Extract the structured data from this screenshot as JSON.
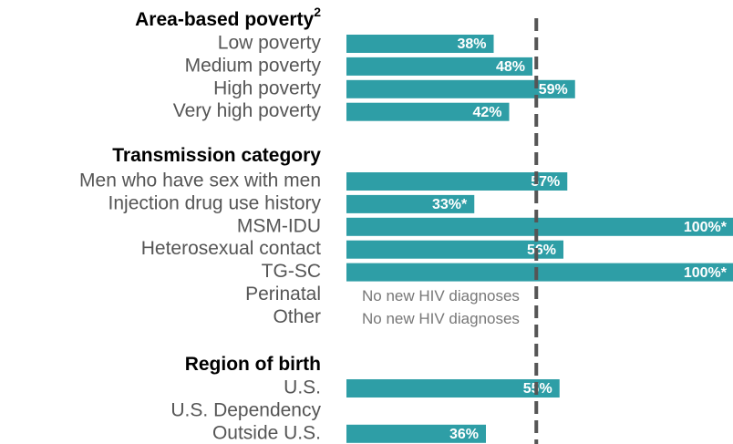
{
  "chart_data": {
    "type": "bar",
    "orientation": "horizontal",
    "color": "#2e9ea6",
    "xlim": [
      0,
      100
    ],
    "reference_line": 49,
    "groups": [
      {
        "title": "Area-based poverty",
        "title_sup": "2",
        "categories": [
          "Low poverty",
          "Medium poverty",
          "High poverty",
          "Very high poverty"
        ],
        "values": [
          38,
          48,
          59,
          42
        ],
        "value_labels": [
          "38%",
          "48%",
          "59%",
          "42%"
        ],
        "notes": [
          null,
          null,
          null,
          null
        ]
      },
      {
        "title": "Transmission category",
        "categories": [
          "Men who have sex with men",
          "Injection drug use history",
          "MSM-IDU",
          "Heterosexual contact",
          "TG-SC",
          "Perinatal",
          "Other"
        ],
        "values": [
          57,
          33,
          100,
          56,
          100,
          null,
          null
        ],
        "value_labels": [
          "57%",
          "33%*",
          "100%*",
          "56%",
          "100%*",
          null,
          null
        ],
        "notes": [
          null,
          null,
          null,
          null,
          null,
          "No new HIV diagnoses",
          "No new HIV diagnoses"
        ]
      },
      {
        "title": "Region of birth",
        "categories": [
          "U.S.",
          "U.S. Dependency",
          "Outside U.S."
        ],
        "values": [
          55,
          null,
          36
        ],
        "value_labels": [
          "55%",
          null,
          "36%"
        ],
        "notes": [
          null,
          null,
          null
        ]
      }
    ]
  }
}
